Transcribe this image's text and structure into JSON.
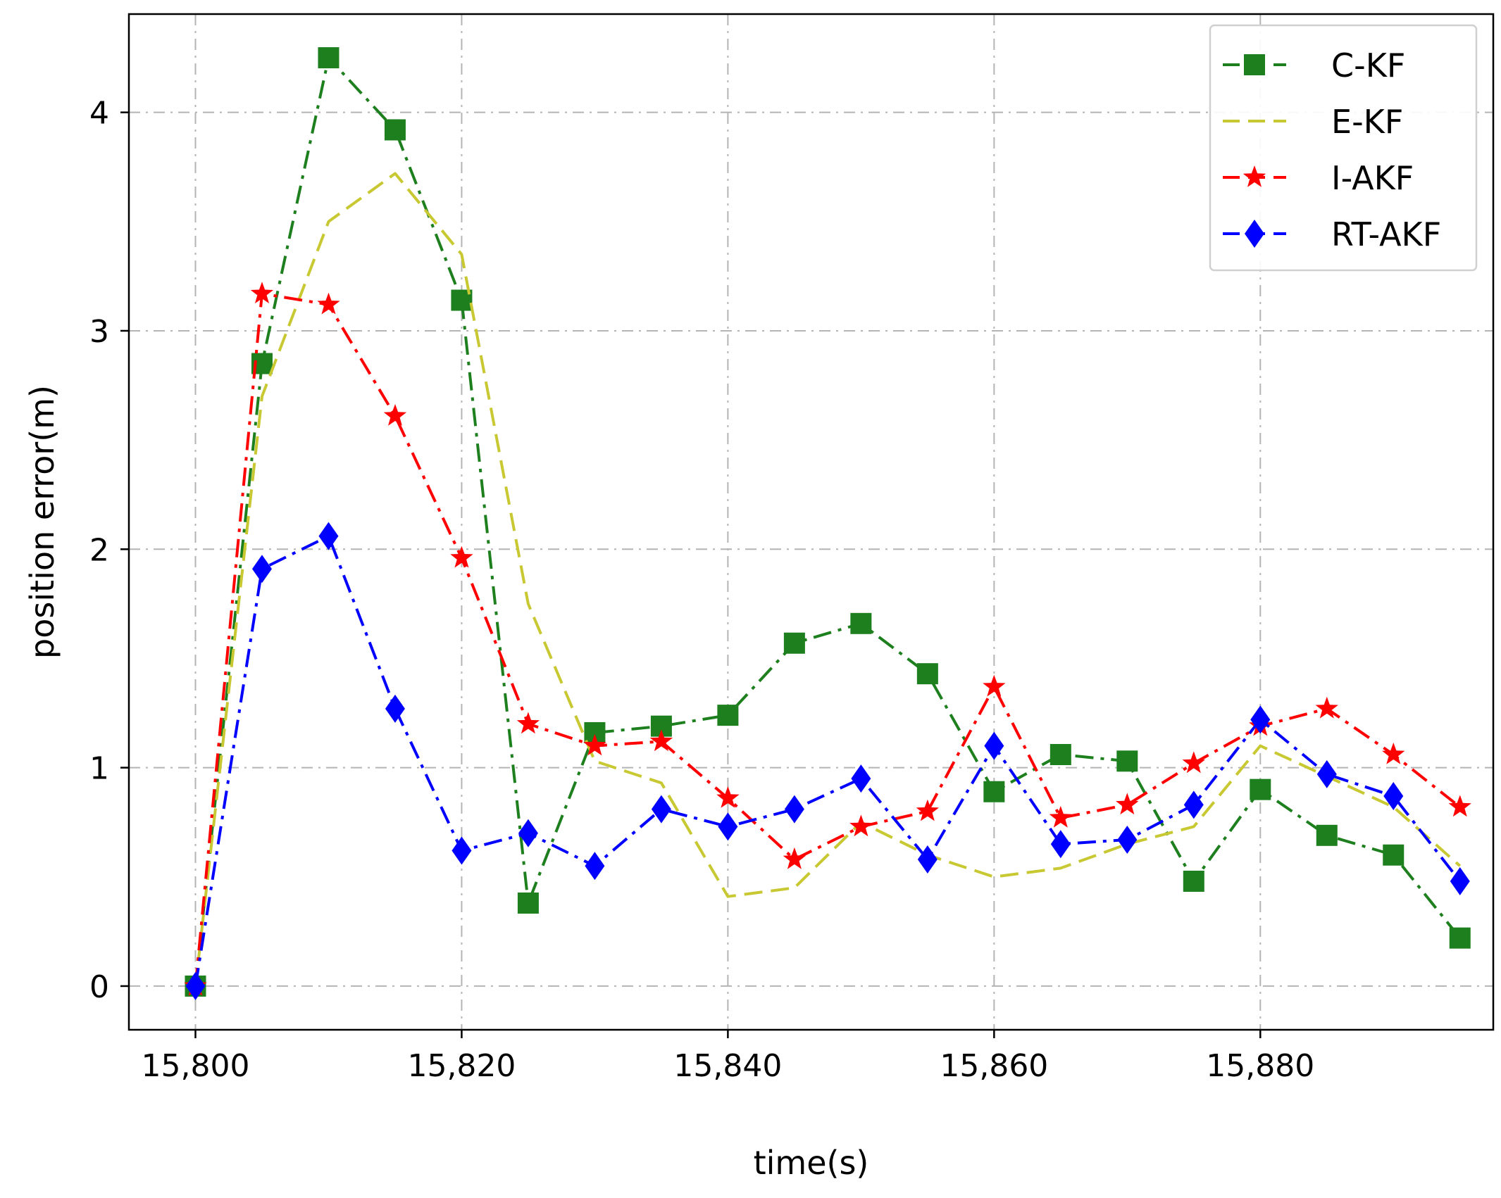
{
  "chart_data": {
    "type": "line",
    "xlabel": "time(s)",
    "ylabel": "position error(m)",
    "xlim": [
      15795,
      15897.5
    ],
    "ylim": [
      -0.2,
      4.45
    ],
    "xticks": [
      15800,
      15820,
      15840,
      15860,
      15880
    ],
    "xtick_labels": [
      "15,800",
      "15,820",
      "15,840",
      "15,860",
      "15,880"
    ],
    "yticks": [
      0,
      1,
      2,
      3,
      4
    ],
    "ytick_labels": [
      "0",
      "1",
      "2",
      "3",
      "4"
    ],
    "grid": true,
    "legend_position": "top-right",
    "x": [
      15800,
      15805,
      15810,
      15815,
      15820,
      15825,
      15830,
      15835,
      15840,
      15845,
      15850,
      15855,
      15860,
      15865,
      15870,
      15875,
      15880,
      15885,
      15890,
      15895
    ],
    "series": [
      {
        "name": "C-KF",
        "color": "#1e7f1e",
        "linestyle": "dashdot",
        "marker": "square",
        "values": [
          0.0,
          2.85,
          4.25,
          3.92,
          3.14,
          0.38,
          1.16,
          1.19,
          1.24,
          1.57,
          1.66,
          1.43,
          0.89,
          1.06,
          1.03,
          0.48,
          0.9,
          0.69,
          0.6,
          0.22
        ]
      },
      {
        "name": "E-KF",
        "color": "#c8c832",
        "linestyle": "dashed",
        "marker": "none",
        "values": [
          0.0,
          2.7,
          3.5,
          3.72,
          3.35,
          1.75,
          1.03,
          0.93,
          0.41,
          0.45,
          0.75,
          0.6,
          0.5,
          0.54,
          0.65,
          0.73,
          1.1,
          0.96,
          0.82,
          0.55
        ]
      },
      {
        "name": "I-AKF",
        "color": "#ff0000",
        "linestyle": "dashdot",
        "marker": "star",
        "values": [
          0.0,
          3.17,
          3.12,
          2.61,
          1.96,
          1.2,
          1.1,
          1.12,
          0.86,
          0.58,
          0.73,
          0.8,
          1.37,
          0.77,
          0.83,
          1.02,
          1.19,
          1.27,
          1.06,
          0.82
        ]
      },
      {
        "name": "RT-AKF",
        "color": "#0000ff",
        "linestyle": "dashdot",
        "marker": "diamond",
        "values": [
          0.0,
          1.91,
          2.06,
          1.27,
          0.62,
          0.7,
          0.55,
          0.81,
          0.73,
          0.81,
          0.95,
          0.58,
          1.1,
          0.65,
          0.67,
          0.83,
          1.22,
          0.97,
          0.87,
          0.48
        ]
      }
    ]
  }
}
